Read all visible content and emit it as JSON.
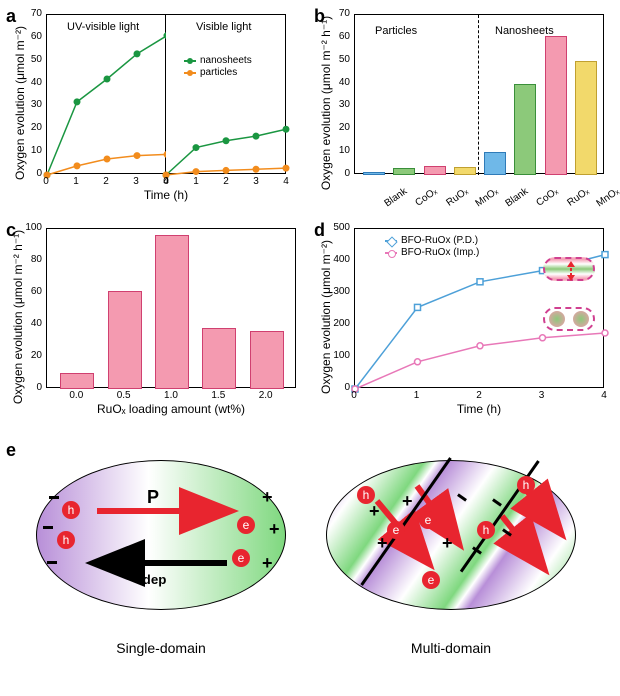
{
  "panelA": {
    "label": "a",
    "ylabel": "Oxygen evolution (μmol m⁻²)",
    "xlabel": "Time (h)",
    "ylim": [
      0,
      70
    ],
    "ytick_step": 10,
    "xlim": [
      0,
      4
    ],
    "xtick_step": 1,
    "left_title": "UV-visible light",
    "right_title": "Visible light",
    "series": {
      "nanosheets": {
        "label": "nanosheets",
        "color": "#1a9641",
        "uv": {
          "x": [
            0,
            1,
            2,
            3,
            4
          ],
          "y": [
            0,
            32,
            42,
            53,
            61
          ]
        },
        "vis": {
          "x": [
            0,
            1,
            2,
            3,
            4
          ],
          "y": [
            0,
            12,
            15,
            17,
            20
          ]
        }
      },
      "particles": {
        "label": "particles",
        "color": "#f28c1d",
        "uv": {
          "x": [
            0,
            1,
            2,
            3,
            4
          ],
          "y": [
            0,
            4,
            7,
            8.5,
            9
          ]
        },
        "vis": {
          "x": [
            0,
            1,
            2,
            3,
            4
          ],
          "y": [
            0,
            1.5,
            2,
            2.5,
            3
          ]
        }
      }
    }
  },
  "panelB": {
    "label": "b",
    "ylabel": "Oxygen evolution (μmol m⁻² h⁻¹)",
    "ylim": [
      0,
      70
    ],
    "ytick_step": 10,
    "left_title": "Particles",
    "right_title": "Nanosheets",
    "categories": [
      "Blank",
      "CoOₓ",
      "RuOₓ",
      "MnOₓ",
      "Blank",
      "CoOₓ",
      "RuOₓ",
      "MnOₓ"
    ],
    "values": [
      1.5,
      3,
      4,
      3.5,
      10,
      40,
      61,
      50
    ],
    "colors": [
      "#6fb8e8",
      "#8cc97a",
      "#f49ab0",
      "#f2d96b",
      "#6fb8e8",
      "#8cc97a",
      "#f49ab0",
      "#f2d96b"
    ],
    "border_colors": [
      "#2f7bb8",
      "#3a8f3a",
      "#d04070",
      "#c0a030",
      "#2f7bb8",
      "#3a8f3a",
      "#d04070",
      "#c0a030"
    ]
  },
  "panelC": {
    "label": "c",
    "ylabel": "Oxygen evolution (μmol m⁻² h⁻¹)",
    "xlabel": "RuOₓ loading amount (wt%)",
    "ylim": [
      0,
      100
    ],
    "ytick_step": 20,
    "categories": [
      "0.0",
      "0.5",
      "1.0",
      "1.5",
      "2.0"
    ],
    "values": [
      10,
      61,
      96,
      38,
      36
    ],
    "bar_color": "#f49ab0",
    "bar_border": "#d04070"
  },
  "panelD": {
    "label": "d",
    "ylabel": "Oxygen evolution (μmol m⁻²)",
    "xlabel": "Time (h)",
    "ylim": [
      0,
      500
    ],
    "ytick_step": 100,
    "xlim": [
      0,
      4
    ],
    "xtick_step": 1,
    "series": {
      "pd": {
        "label": "BFO-RuOx (P.D.)",
        "color": "#4da0d8",
        "x": [
          0,
          1,
          2,
          3,
          4
        ],
        "y": [
          0,
          255,
          335,
          370,
          420
        ]
      },
      "imp": {
        "label": "BFO-RuOx (Imp.)",
        "color": "#e878b8",
        "x": [
          0,
          1,
          2,
          3,
          4
        ],
        "y": [
          0,
          85,
          135,
          160,
          175
        ]
      }
    }
  },
  "panelE": {
    "label": "e",
    "left_caption": "Single-domain",
    "right_caption": "Multi-domain",
    "p_label": "P",
    "edep_label": "E_dep",
    "gradient_left": "#b88fd8",
    "gradient_mid": "#ffffff",
    "gradient_right": "#7fd87f",
    "arrow_color": "#e8252f",
    "charge_color": "#e8252f"
  }
}
